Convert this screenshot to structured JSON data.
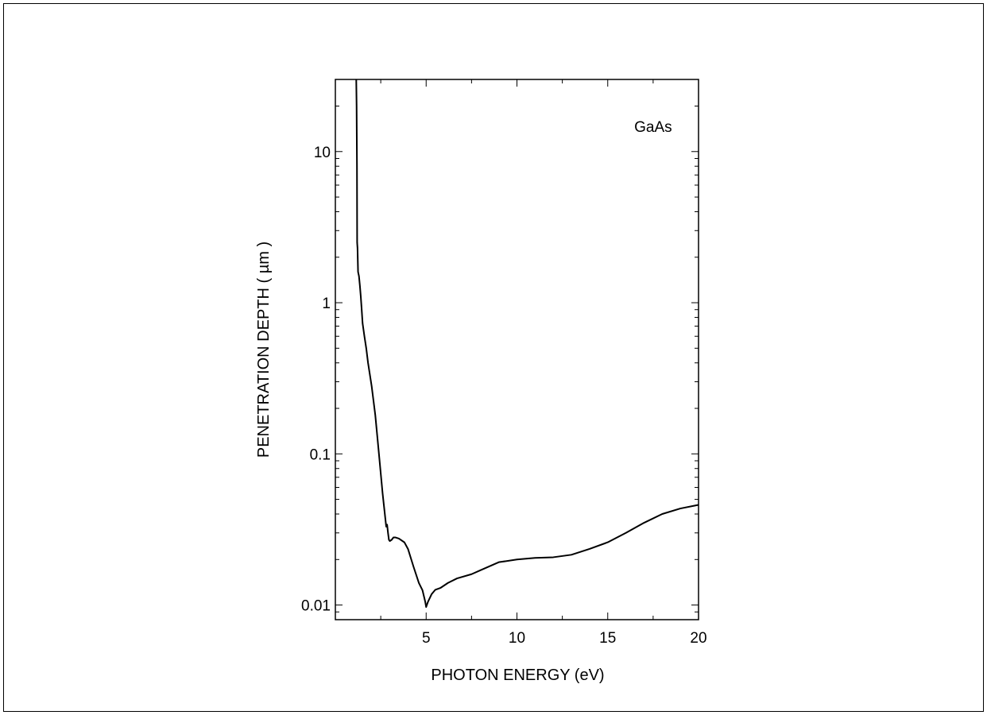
{
  "chart_data": {
    "type": "line",
    "title": "",
    "annotation": "GaAs",
    "xlabel": "PHOTON ENERGY (eV)",
    "ylabel": "PENETRATION DEPTH ( µm )",
    "xlim": [
      0,
      20
    ],
    "ylim": [
      0.008,
      30
    ],
    "yscale": "log",
    "grid": false,
    "legend": "none",
    "xticks": [
      5,
      10,
      15,
      20
    ],
    "xtick_labels": [
      "5",
      "10",
      "15",
      "20"
    ],
    "yticks": [
      0.01,
      0.1,
      1,
      10
    ],
    "ytick_labels": [
      "0.01",
      "0.1",
      "1",
      "10"
    ],
    "line_color": "#000000",
    "series": [
      {
        "x": [
          1.15,
          1.17,
          1.19,
          1.2,
          1.22,
          1.25,
          1.3,
          1.35,
          1.4,
          1.45,
          1.5,
          1.6,
          1.7,
          1.8,
          2.0,
          2.2,
          2.4,
          2.6,
          2.8,
          2.85,
          2.9,
          2.95,
          3.0,
          3.1,
          3.2,
          3.3,
          3.5,
          3.8,
          4.0,
          4.3,
          4.6,
          4.8,
          4.95,
          5.0,
          5.1,
          5.3,
          5.5,
          5.8,
          6.2,
          6.7,
          7.5,
          8.0,
          9.0,
          10.0,
          11.0,
          12.0,
          13.0,
          14.0,
          15.0,
          16.0,
          17.0,
          18.0,
          19.0,
          20.0
        ],
        "y": [
          30,
          20,
          8,
          2.5,
          2.3,
          1.6,
          1.5,
          1.3,
          1.1,
          0.9,
          0.73,
          0.6,
          0.5,
          0.4,
          0.28,
          0.18,
          0.1,
          0.055,
          0.033,
          0.034,
          0.03,
          0.027,
          0.0265,
          0.027,
          0.028,
          0.028,
          0.0275,
          0.026,
          0.0235,
          0.018,
          0.014,
          0.0125,
          0.0105,
          0.0097,
          0.0105,
          0.0118,
          0.0126,
          0.013,
          0.014,
          0.015,
          0.016,
          0.017,
          0.0192,
          0.02,
          0.0205,
          0.0207,
          0.0215,
          0.0235,
          0.026,
          0.03,
          0.035,
          0.04,
          0.0435,
          0.046
        ]
      }
    ]
  }
}
